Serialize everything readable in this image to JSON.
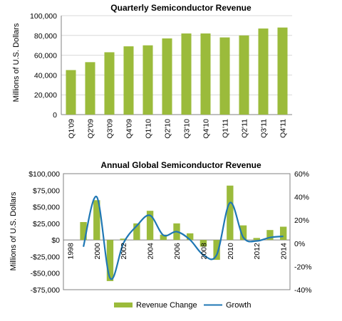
{
  "colors": {
    "bar": "#9BBB3B",
    "line": "#1F77B4",
    "grid": "#d9d9d9",
    "axis": "#808080"
  },
  "chart_data": [
    {
      "type": "bar",
      "title": "Quarterly Semiconductor Revenue",
      "ylabel": "Millions of U.S. Dollars",
      "xlabel": "",
      "categories": [
        "Q1'09",
        "Q2'09",
        "Q3'09",
        "Q4'09",
        "Q1'10",
        "Q2'10",
        "Q3'10",
        "Q4'10",
        "Q1'11",
        "Q2'11",
        "Q3'11",
        "Q4'11"
      ],
      "values": [
        45000,
        53000,
        63000,
        69000,
        70000,
        77000,
        82000,
        82000,
        78000,
        80000,
        87000,
        88000
      ],
      "ylim": [
        0,
        100000
      ],
      "yticks": [
        0,
        20000,
        40000,
        60000,
        80000,
        100000
      ],
      "ytick_labels": [
        "0",
        "20,000",
        "40,000",
        "60,000",
        "80,000",
        "100,000"
      ],
      "grid": true
    },
    {
      "type": "bar+line",
      "title": "Annual Global Semiconductor Revenue",
      "ylabel": "Millions of U.S. Dollars",
      "x": [
        1999,
        2000,
        2001,
        2002,
        2003,
        2004,
        2005,
        2006,
        2007,
        2008,
        2009,
        2010,
        2011,
        2012,
        2013,
        2014
      ],
      "xtick_labels": [
        "1998",
        "2000",
        "2002",
        "2004",
        "2006",
        "2008",
        "2010",
        "2012",
        "2014"
      ],
      "xtick_years": [
        1998,
        2000,
        2002,
        2004,
        2006,
        2008,
        2010,
        2012,
        2014
      ],
      "xlim": [
        1997.5,
        2014.5
      ],
      "series": [
        {
          "name": "Revenue Change",
          "axis": "left",
          "values": [
            27000,
            60000,
            -62000,
            2000,
            25000,
            44000,
            8000,
            25000,
            10000,
            -10000,
            -30000,
            82000,
            22000,
            3000,
            15000,
            20000
          ]
        },
        {
          "name": "Growth",
          "axis": "right",
          "values": [
            -3,
            40,
            -30,
            0,
            15,
            24,
            7,
            10,
            3,
            -10,
            -10,
            35,
            5,
            2,
            5,
            6
          ]
        }
      ],
      "left_ylim": [
        -75000,
        100000
      ],
      "left_yticks": [
        100000,
        75000,
        50000,
        25000,
        0,
        -25000,
        -50000,
        -75000
      ],
      "left_ytick_labels": [
        "$100,000",
        "$75,000",
        "$50,000",
        "$25,000",
        "$0",
        "-$25,000",
        "-$50,000",
        "-$75,000"
      ],
      "right_ylim": [
        -40,
        60
      ],
      "right_yticks": [
        60,
        40,
        20,
        0,
        -20,
        -40
      ],
      "right_ytick_labels": [
        "60%",
        "40%",
        "20%",
        "0%",
        "-20%",
        "-40%"
      ],
      "legend": {
        "placement": "bottom",
        "bar_label": "Revenue Change",
        "line_label": "Growth"
      },
      "grid": false
    }
  ]
}
